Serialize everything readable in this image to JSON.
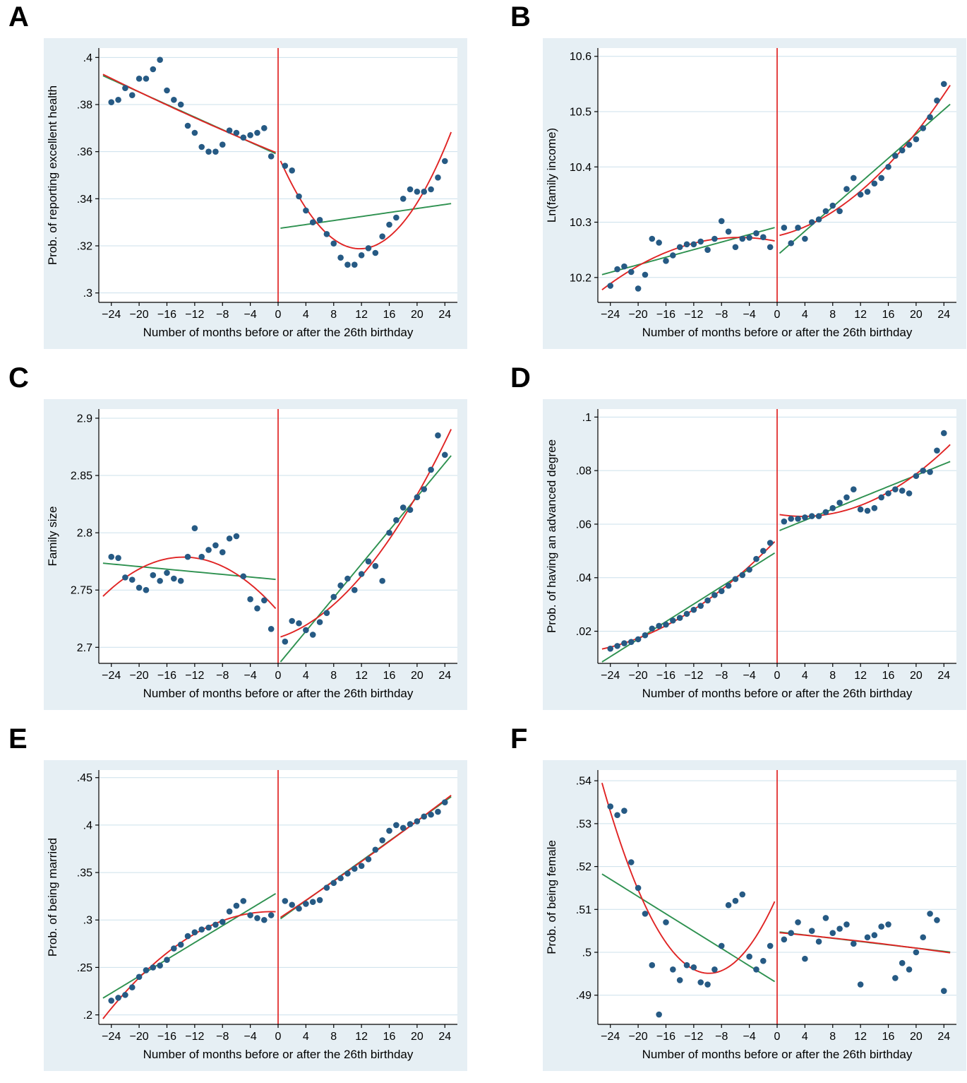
{
  "style": {
    "figure_background": "#e6eff4",
    "plot_background": "#ffffff",
    "grid_color": "#cce0eb",
    "axis_color": "#000000",
    "text_color": "#000000",
    "dot_color": "#265a84",
    "quadratic_fit_color": "#e02424",
    "linear_fit_color": "#2e9150",
    "cutoff_line_color": "#e02424"
  },
  "shared": {
    "xlabel": "Number of months before or after the 26th birthday",
    "cutoff_x": 0,
    "xlim": [
      -25.8,
      25.8
    ],
    "xticks": [
      -24,
      -20,
      -16,
      -12,
      -8,
      -4,
      0,
      4,
      8,
      12,
      16,
      20,
      24
    ],
    "xtick_labels": [
      "−24",
      "−20",
      "−16",
      "−12",
      "−8",
      "−4",
      "0",
      "4",
      "8",
      "12",
      "16",
      "20",
      "24"
    ],
    "fit_note": "green = linear fit per side, red = quadratic fit per side, vertical red line at cutoff x=0",
    "grid_on": true,
    "legend_position": "none"
  },
  "chart_data": [
    {
      "type": "scatter",
      "panel_label": "A",
      "ylabel": "Prob. of reporting excellent health",
      "ylim": [
        0.296,
        0.404
      ],
      "yticks": [
        0.3,
        0.32,
        0.34,
        0.36,
        0.38,
        0.4
      ],
      "ytick_labels": [
        ".3",
        ".32",
        ".34",
        ".36",
        ".38",
        ".4"
      ],
      "x": [
        -24,
        -23,
        -22,
        -21,
        -20,
        -19,
        -18,
        -17,
        -16,
        -15,
        -14,
        -13,
        -12,
        -11,
        -10,
        -9,
        -8,
        -7,
        -6,
        -5,
        -4,
        -3,
        -2,
        -1,
        1,
        2,
        3,
        4,
        5,
        6,
        7,
        8,
        9,
        10,
        11,
        12,
        13,
        14,
        15,
        16,
        17,
        18,
        19,
        20,
        21,
        22,
        23,
        24
      ],
      "y": [
        0.381,
        0.382,
        0.387,
        0.384,
        0.391,
        0.391,
        0.395,
        0.399,
        0.386,
        0.382,
        0.38,
        0.371,
        0.368,
        0.362,
        0.36,
        0.36,
        0.363,
        0.369,
        0.368,
        0.366,
        0.367,
        0.368,
        0.37,
        0.358,
        0.354,
        0.352,
        0.341,
        0.335,
        0.33,
        0.331,
        0.325,
        0.321,
        0.315,
        0.312,
        0.312,
        0.316,
        0.319,
        0.317,
        0.324,
        0.329,
        0.332,
        0.34,
        0.344,
        0.343,
        0.343,
        0.344,
        0.349,
        0.356
      ]
    },
    {
      "type": "scatter",
      "panel_label": "B",
      "ylabel": "Ln(family income)",
      "ylim": [
        10.155,
        10.615
      ],
      "yticks": [
        10.2,
        10.3,
        10.4,
        10.5,
        10.6
      ],
      "ytick_labels": [
        "10.2",
        "10.3",
        "10.4",
        "10.5",
        "10.6"
      ],
      "x": [
        -24,
        -23,
        -22,
        -21,
        -20,
        -19,
        -18,
        -17,
        -16,
        -15,
        -14,
        -13,
        -12,
        -11,
        -10,
        -9,
        -8,
        -7,
        -6,
        -5,
        -4,
        -3,
        -2,
        -1,
        1,
        2,
        3,
        4,
        5,
        6,
        7,
        8,
        9,
        10,
        11,
        12,
        13,
        14,
        15,
        16,
        17,
        18,
        19,
        20,
        21,
        22,
        23,
        24
      ],
      "y": [
        10.185,
        10.215,
        10.22,
        10.21,
        10.18,
        10.205,
        10.27,
        10.263,
        10.23,
        10.24,
        10.255,
        10.26,
        10.26,
        10.265,
        10.25,
        10.27,
        10.302,
        10.283,
        10.255,
        10.27,
        10.272,
        10.28,
        10.273,
        10.255,
        10.29,
        10.262,
        10.29,
        10.27,
        10.3,
        10.305,
        10.32,
        10.33,
        10.32,
        10.36,
        10.38,
        10.35,
        10.355,
        10.37,
        10.38,
        10.4,
        10.42,
        10.43,
        10.44,
        10.45,
        10.47,
        10.49,
        10.52,
        10.55
      ]
    },
    {
      "type": "scatter",
      "panel_label": "C",
      "ylabel": "Family size",
      "ylim": [
        2.686,
        2.908
      ],
      "yticks": [
        2.7,
        2.75,
        2.8,
        2.85,
        2.9
      ],
      "ytick_labels": [
        "2.7",
        "2.75",
        "2.8",
        "2.85",
        "2.9"
      ],
      "x": [
        -24,
        -23,
        -22,
        -21,
        -20,
        -19,
        -18,
        -17,
        -16,
        -15,
        -14,
        -13,
        -12,
        -11,
        -10,
        -9,
        -8,
        -7,
        -6,
        -5,
        -4,
        -3,
        -2,
        -1,
        1,
        2,
        3,
        4,
        5,
        6,
        7,
        8,
        9,
        10,
        11,
        12,
        13,
        14,
        15,
        16,
        17,
        18,
        19,
        20,
        21,
        22,
        23,
        24
      ],
      "y": [
        2.779,
        2.778,
        2.761,
        2.759,
        2.752,
        2.75,
        2.763,
        2.758,
        2.765,
        2.76,
        2.758,
        2.779,
        2.804,
        2.779,
        2.785,
        2.789,
        2.783,
        2.795,
        2.797,
        2.762,
        2.742,
        2.734,
        2.741,
        2.716,
        2.705,
        2.723,
        2.721,
        2.715,
        2.711,
        2.722,
        2.73,
        2.744,
        2.754,
        2.76,
        2.75,
        2.764,
        2.775,
        2.771,
        2.758,
        2.8,
        2.811,
        2.822,
        2.82,
        2.831,
        2.838,
        2.855,
        2.885,
        2.868
      ]
    },
    {
      "type": "scatter",
      "panel_label": "D",
      "ylabel": "Prob. of having an advanced degree",
      "ylim": [
        0.008,
        0.103
      ],
      "yticks": [
        0.02,
        0.04,
        0.06,
        0.08,
        0.1
      ],
      "ytick_labels": [
        ".02",
        ".04",
        ".06",
        ".08",
        ".1"
      ],
      "x": [
        -24,
        -23,
        -22,
        -21,
        -20,
        -19,
        -18,
        -17,
        -16,
        -15,
        -14,
        -13,
        -12,
        -11,
        -10,
        -9,
        -8,
        -7,
        -6,
        -5,
        -4,
        -3,
        -2,
        -1,
        1,
        2,
        3,
        4,
        5,
        6,
        7,
        8,
        9,
        10,
        11,
        12,
        13,
        14,
        15,
        16,
        17,
        18,
        19,
        20,
        21,
        22,
        23,
        24
      ],
      "y": [
        0.0135,
        0.0145,
        0.0155,
        0.016,
        0.017,
        0.0185,
        0.021,
        0.022,
        0.0225,
        0.024,
        0.025,
        0.0265,
        0.028,
        0.0295,
        0.0315,
        0.0335,
        0.035,
        0.037,
        0.0395,
        0.041,
        0.043,
        0.047,
        0.05,
        0.053,
        0.061,
        0.062,
        0.062,
        0.0625,
        0.063,
        0.063,
        0.0645,
        0.066,
        0.068,
        0.07,
        0.073,
        0.0655,
        0.065,
        0.066,
        0.07,
        0.0715,
        0.073,
        0.0725,
        0.0715,
        0.078,
        0.08,
        0.0795,
        0.0875,
        0.094
      ]
    },
    {
      "type": "scatter",
      "panel_label": "E",
      "ylabel": "Prob. of being married",
      "ylim": [
        0.19,
        0.458
      ],
      "yticks": [
        0.2,
        0.25,
        0.3,
        0.35,
        0.4,
        0.45
      ],
      "ytick_labels": [
        ".2",
        ".25",
        ".3",
        ".35",
        ".4",
        ".45"
      ],
      "x": [
        -24,
        -23,
        -22,
        -21,
        -20,
        -19,
        -18,
        -17,
        -16,
        -15,
        -14,
        -13,
        -12,
        -11,
        -10,
        -9,
        -8,
        -7,
        -6,
        -5,
        -4,
        -3,
        -2,
        -1,
        1,
        2,
        3,
        4,
        5,
        6,
        7,
        8,
        9,
        10,
        11,
        12,
        13,
        14,
        15,
        16,
        17,
        18,
        19,
        20,
        21,
        22,
        23,
        24
      ],
      "y": [
        0.215,
        0.218,
        0.221,
        0.229,
        0.24,
        0.247,
        0.25,
        0.252,
        0.258,
        0.27,
        0.274,
        0.283,
        0.287,
        0.29,
        0.292,
        0.295,
        0.298,
        0.309,
        0.315,
        0.32,
        0.305,
        0.302,
        0.3,
        0.305,
        0.32,
        0.316,
        0.312,
        0.317,
        0.319,
        0.321,
        0.334,
        0.339,
        0.344,
        0.349,
        0.354,
        0.357,
        0.364,
        0.374,
        0.384,
        0.394,
        0.4,
        0.397,
        0.401,
        0.404,
        0.409,
        0.411,
        0.414,
        0.424
      ]
    },
    {
      "type": "scatter",
      "panel_label": "F",
      "ylabel": "Prob. of being female",
      "ylim": [
        0.4832,
        0.5425
      ],
      "yticks": [
        0.49,
        0.5,
        0.51,
        0.52,
        0.53,
        0.54
      ],
      "ytick_labels": [
        ".49",
        ".5",
        ".51",
        ".52",
        ".53",
        ".54"
      ],
      "x": [
        -24,
        -23,
        -22,
        -21,
        -20,
        -19,
        -18,
        -17,
        -16,
        -15,
        -14,
        -13,
        -12,
        -11,
        -10,
        -9,
        -8,
        -7,
        -6,
        -5,
        -4,
        -3,
        -2,
        -1,
        1,
        2,
        3,
        4,
        5,
        6,
        7,
        8,
        9,
        10,
        11,
        12,
        13,
        14,
        15,
        16,
        17,
        18,
        19,
        20,
        21,
        22,
        23,
        24
      ],
      "y": [
        0.534,
        0.532,
        0.533,
        0.521,
        0.515,
        0.509,
        0.497,
        0.4855,
        0.507,
        0.496,
        0.4935,
        0.497,
        0.4965,
        0.493,
        0.4925,
        0.496,
        0.5015,
        0.511,
        0.512,
        0.5135,
        0.499,
        0.496,
        0.498,
        0.5015,
        0.503,
        0.5045,
        0.507,
        0.4985,
        0.505,
        0.5025,
        0.508,
        0.5045,
        0.5055,
        0.5065,
        0.502,
        0.4925,
        0.5035,
        0.504,
        0.506,
        0.5065,
        0.494,
        0.4975,
        0.496,
        0.5,
        0.5035,
        0.509,
        0.5075,
        0.491
      ]
    }
  ]
}
